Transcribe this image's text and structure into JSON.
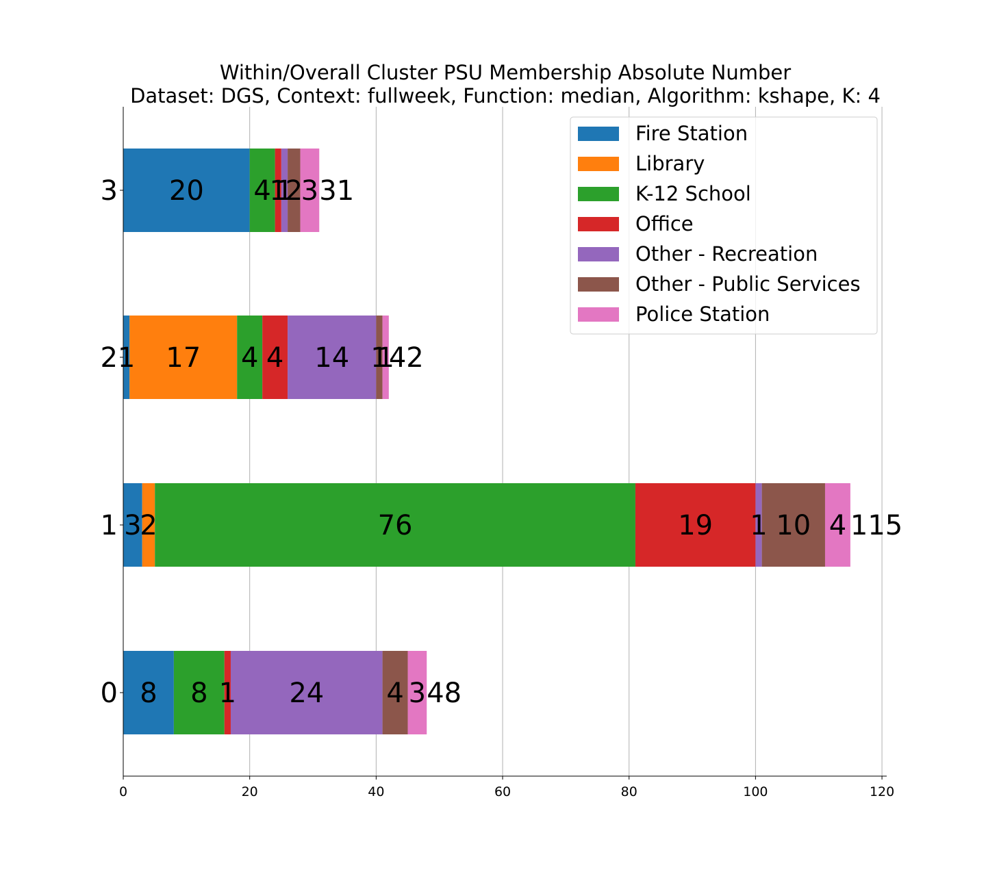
{
  "chart_data": {
    "type": "bar",
    "orientation": "horizontal",
    "stacked": true,
    "title": "Within/Overall Cluster PSU Membership Absolute Number",
    "subtitle": "Dataset: DGS, Context: fullweek, Function: median, Algorithm: kshape, K: 4",
    "xlabel": "",
    "ylabel": "",
    "xlim": [
      0,
      120.75
    ],
    "xticks": [
      0,
      20,
      40,
      60,
      80,
      100,
      120
    ],
    "categories": [
      "0",
      "1",
      "2",
      "3"
    ],
    "grid": "vertical",
    "legend_position": "top-right",
    "series": [
      {
        "name": "Fire Station",
        "color": "#1f77b4",
        "values": [
          8,
          3,
          1,
          20
        ]
      },
      {
        "name": "Library",
        "color": "#ff7f0e",
        "values": [
          0,
          2,
          17,
          0
        ]
      },
      {
        "name": "K-12 School",
        "color": "#2ca02c",
        "values": [
          8,
          76,
          4,
          4
        ]
      },
      {
        "name": "Office",
        "color": "#d62728",
        "values": [
          1,
          19,
          4,
          1
        ]
      },
      {
        "name": "Other - Recreation",
        "color": "#9467bd",
        "values": [
          24,
          1,
          14,
          1
        ]
      },
      {
        "name": "Other - Public Services",
        "color": "#8c564b",
        "values": [
          4,
          10,
          1,
          2
        ]
      },
      {
        "name": "Police Station",
        "color": "#e377c2",
        "values": [
          3,
          4,
          1,
          3
        ]
      }
    ],
    "totals": [
      48,
      115,
      42,
      31
    ]
  }
}
